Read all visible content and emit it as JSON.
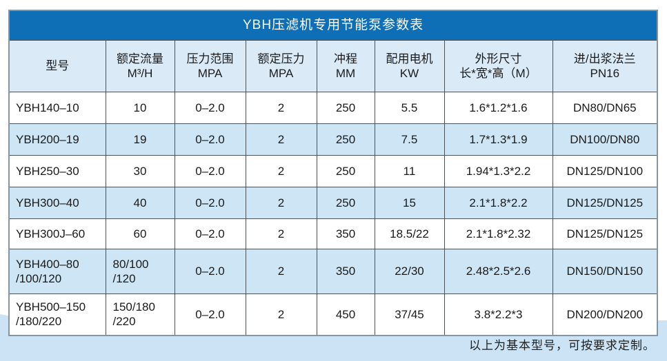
{
  "title": "YBH压滤机专用节能泵参数表",
  "footer_note": "以上为基本型号，可按要求定制。",
  "colors": {
    "title_bar": "#0e6eb6",
    "header_row_bg": "#dbeaf7",
    "alt_row_bg": "#cde5f4",
    "bottom_band": "#cbe3f4",
    "outer_border": "#8795a1",
    "cell_border": "#4b5257",
    "title_text": "#ffffff",
    "body_text": "#1a1a1a"
  },
  "table": {
    "headers": [
      "型号",
      "额定流量\nM³/H",
      "压力范围\nMPA",
      "额定压力\nMPA",
      "冲程\nMM",
      "配用电机\nKW",
      "外形尺寸\n长*宽*高（M）",
      "进/出浆法兰\nPN16"
    ],
    "rows": [
      [
        "YBH140–10",
        "10",
        "0–2.0",
        "2",
        "250",
        "5.5",
        "1.6*1.2*1.6",
        "DN80/DN65"
      ],
      [
        "YBH200–19",
        "19",
        "0–2.0",
        "2",
        "250",
        "7.5",
        "1.7*1.3*1.9",
        "DN100/DN80"
      ],
      [
        "YBH250–30",
        "30",
        "0–2.0",
        "2",
        "250",
        "11",
        "1.94*1.3*2.2",
        "DN125/DN100"
      ],
      [
        "YBH300–40",
        "40",
        "0–2.0",
        "2",
        "250",
        "15",
        "2.1*1.8*2.2",
        "DN125/DN125"
      ],
      [
        "YBH300J–60",
        "60",
        "0–2.0",
        "2",
        "350",
        "18.5/22",
        "2.1*1.8*2.32",
        "DN125/DN125"
      ],
      [
        "YBH400–80\n/100/120",
        "80/100\n/120",
        "0–2.0",
        "2",
        "350",
        "22/30",
        "2.48*2.5*2.6",
        "DN150/DN150"
      ],
      [
        "YBH500–150\n/180/220",
        "150/180\n/220",
        "0–2.0",
        "2",
        "450",
        "37/45",
        "3.8*2.2*3",
        "DN200/DN200"
      ]
    ]
  }
}
